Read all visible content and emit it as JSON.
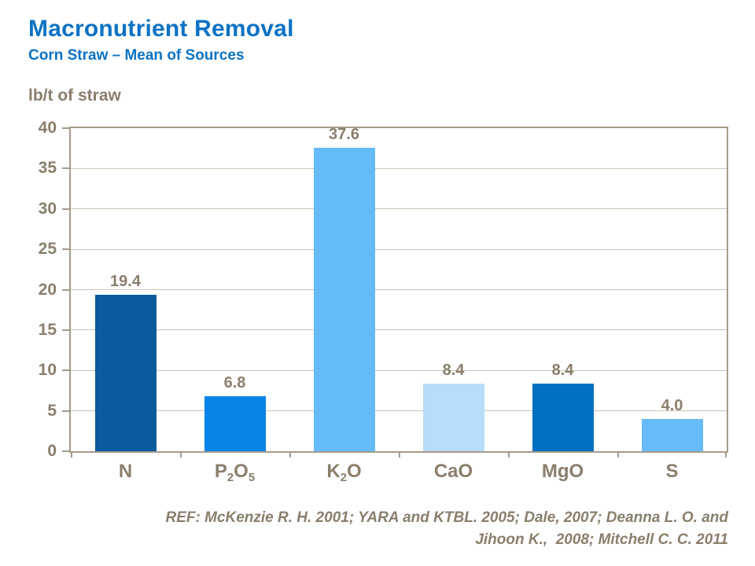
{
  "header": {
    "title": "Macronutrient Removal",
    "subtitle": "Corn Straw – Mean of Sources"
  },
  "colors": {
    "title_blue": "#0C72C4",
    "text_brown": "#8A7E6C",
    "axis_border": "#A69B8B",
    "gridline": "#CCC4B6"
  },
  "chart_data": {
    "type": "bar",
    "title": "Macronutrient Removal",
    "subtitle": "Corn Straw – Mean of Sources",
    "ylabel": "lb/t of straw",
    "xlabel": "",
    "ylim": [
      0,
      40
    ],
    "ytick_step": 5,
    "yticks": [
      0,
      5,
      10,
      15,
      20,
      25,
      30,
      35,
      40
    ],
    "grid": true,
    "legend_position": "none",
    "categories": [
      {
        "name": "N",
        "parts": [
          {
            "text": "N"
          }
        ]
      },
      {
        "name": "P2O5",
        "parts": [
          {
            "text": "P"
          },
          {
            "text": "2",
            "sub": true
          },
          {
            "text": "O"
          },
          {
            "text": "5",
            "sub": true
          }
        ]
      },
      {
        "name": "K2O",
        "parts": [
          {
            "text": "K"
          },
          {
            "text": "2",
            "sub": true
          },
          {
            "text": "O"
          }
        ]
      },
      {
        "name": "CaO",
        "parts": [
          {
            "text": "CaO"
          }
        ]
      },
      {
        "name": "MgO",
        "parts": [
          {
            "text": "MgO"
          }
        ]
      },
      {
        "name": "S",
        "parts": [
          {
            "text": "S"
          }
        ]
      }
    ],
    "values": [
      19.4,
      6.8,
      37.6,
      8.4,
      8.4,
      4.0
    ],
    "value_labels": [
      "19.4",
      "6.8",
      "37.6",
      "8.4",
      "8.4",
      "4.0"
    ],
    "bar_colors": [
      "#0A5A9C",
      "#0884E8",
      "#65BAF8",
      "#B7DDFA",
      "#0070C0",
      "#66BBF8"
    ]
  },
  "footer": {
    "ref_line1": "REF: McKenzie R. H. 2001; YARA and KTBL. 2005; Dale, 2007; Deanna L. O. and",
    "ref_line2": "Jihoon K.,  2008; Mitchell C. C. 2011"
  }
}
